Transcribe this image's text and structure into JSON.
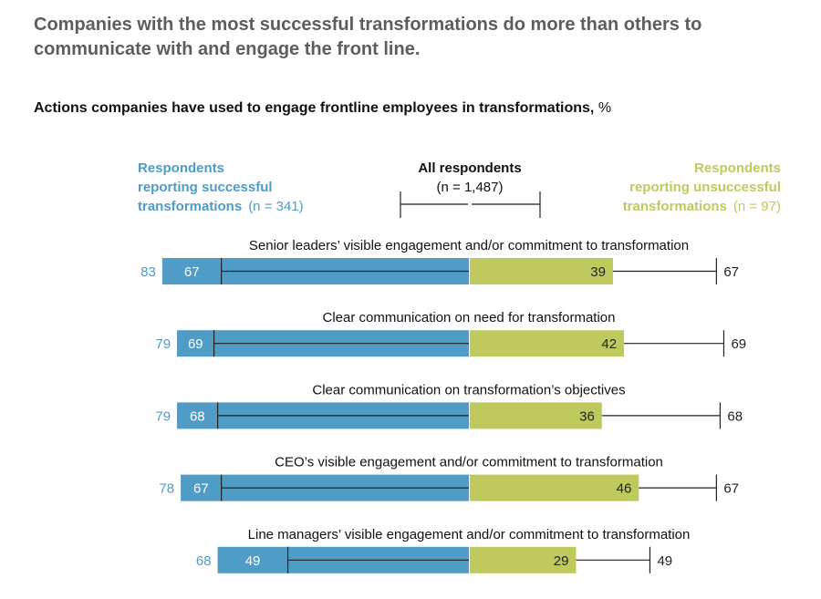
{
  "title": "Companies with the most successful transformations do more than others to communicate with and engage the front line.",
  "subtitle": "Actions companies have used to engage frontline employees in transformations,",
  "subtitle_unit": "%",
  "legend": {
    "successful": {
      "line1": "Respondents",
      "line2": "reporting successful",
      "line3": "transformations",
      "n": "(n = 341)"
    },
    "all": {
      "line1": "All respondents",
      "line2": "(n = 1,487)"
    },
    "unsuccessful": {
      "line1": "Respondents",
      "line2": "reporting unsuccessful",
      "line3": "transformations",
      "n": "(n = 97)"
    }
  },
  "colors": {
    "successful": "#4f9cc6",
    "unsuccessful": "#bec95e",
    "title": "#5d5d5d",
    "line": "#222222"
  },
  "chart_data": {
    "type": "bar",
    "layout": "diverging",
    "series": [
      {
        "name": "Respondents reporting successful transformations (n = 341)",
        "values": [
          83,
          79,
          79,
          78,
          68
        ]
      },
      {
        "name": "All respondents (n = 1,487)",
        "values": [
          67,
          69,
          68,
          67,
          49
        ]
      },
      {
        "name": "Respondents reporting unsuccessful transformations (n = 97)",
        "values": [
          39,
          42,
          36,
          46,
          29
        ]
      }
    ],
    "categories": [
      "Senior leaders’ visible engagement and/or commitment to transformation",
      "Clear communication on need for transformation",
      "Clear communication on transformation’s objectives",
      "CEO’s visible engagement and/or commitment to transformation",
      "Line managers’ visible engagement and/or commitment to transformation"
    ],
    "unit": "%"
  }
}
